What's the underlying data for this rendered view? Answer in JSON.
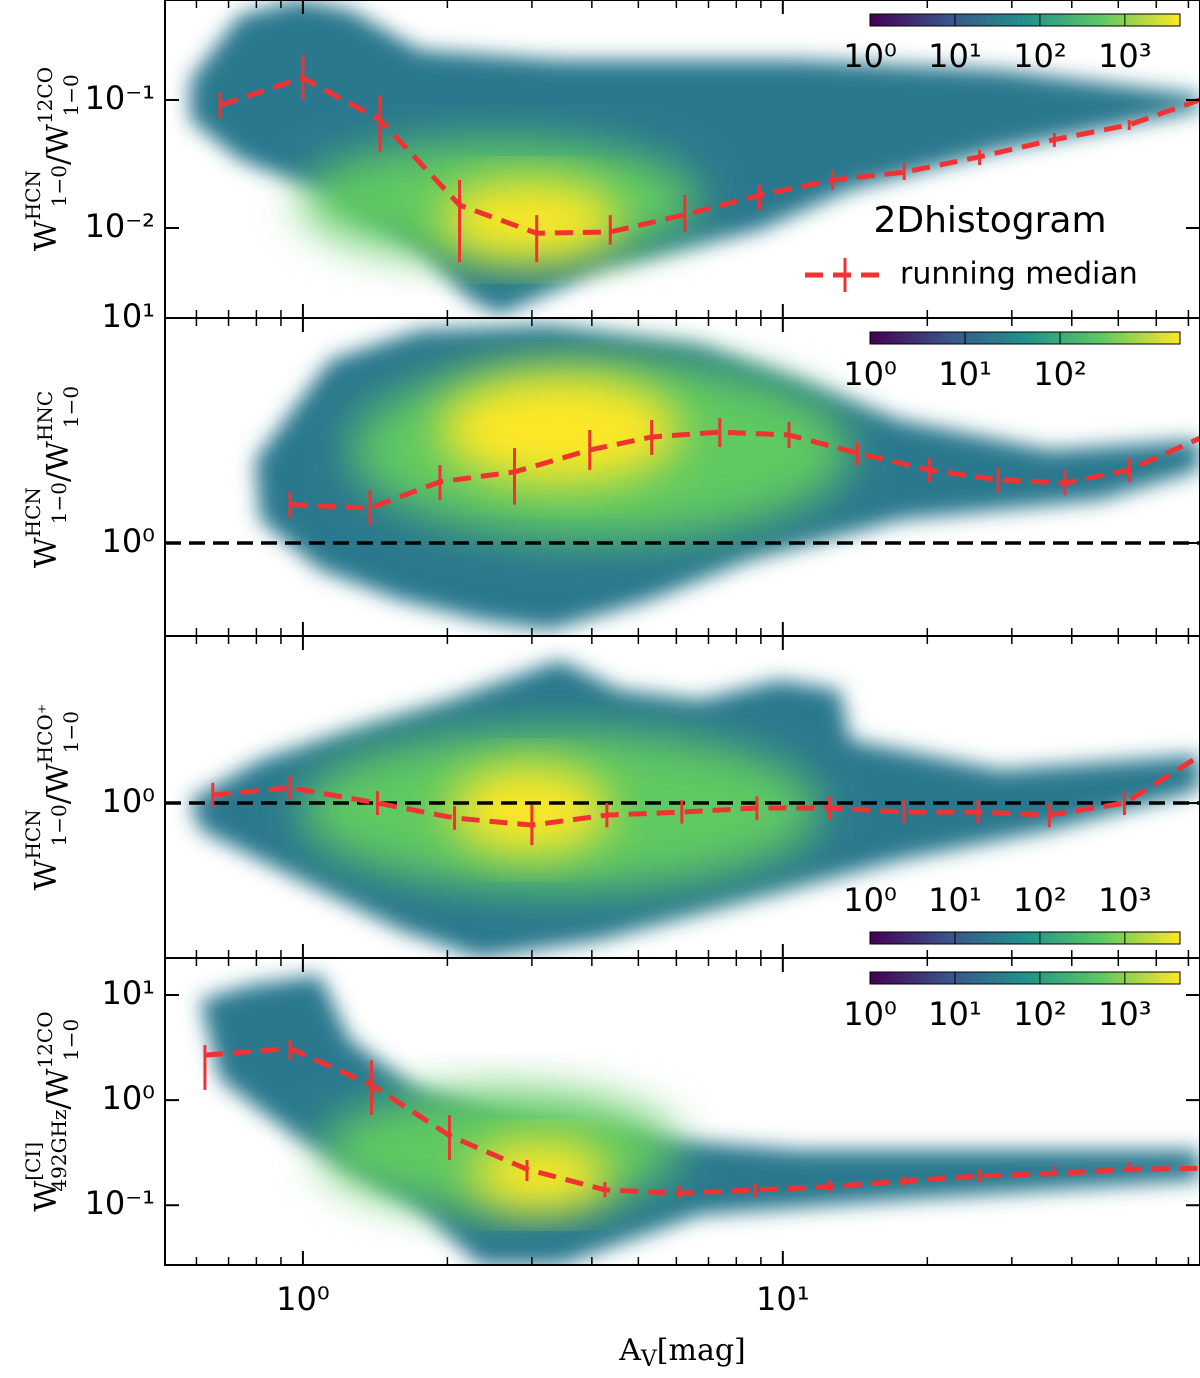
{
  "chart_data": [
    {
      "type": "hist2d",
      "ylabel": {
        "num": {
          "main": "W",
          "sup": "HCN",
          "sub": "1−0"
        },
        "sep": "/",
        "den": {
          "main": "W",
          "sup": "12CO",
          "sub": "1−0"
        }
      },
      "xlim": [
        0.516,
        74
      ],
      "xticks": [
        1,
        10
      ],
      "xminorticks": [
        0.6,
        0.7,
        0.8,
        0.9,
        2,
        3,
        4,
        5,
        6,
        7,
        8,
        9,
        20,
        30,
        40,
        50,
        60,
        70
      ],
      "log_x": true,
      "log_y": true,
      "ylim": [
        0.00198,
        0.604
      ],
      "yticks": [
        {
          "value": 0.01,
          "label": "10⁻²"
        },
        {
          "value": 0.1,
          "label": "10⁻¹"
        }
      ],
      "series": [
        {
          "name": "running median",
          "color": "#f03232",
          "x": [
            0.672,
            1.0,
            1.447,
            2.12,
            3.07,
            4.37,
            6.25,
            8.94,
            12.7,
            17.9,
            25.7,
            36.8,
            52.7,
            76
          ],
          "values": [
            0.091,
            0.149,
            0.07,
            0.0151,
            0.0091,
            0.0093,
            0.0127,
            0.018,
            0.0237,
            0.0273,
            0.036,
            0.049,
            0.064,
            0.104
          ],
          "lower": [
            0.072,
            0.1,
            0.039,
            0.0054,
            0.0054,
            0.0074,
            0.0093,
            0.0138,
            0.0198,
            0.0237,
            0.031,
            0.043,
            0.0583,
            null
          ],
          "upper": [
            0.115,
            0.225,
            0.109,
            0.0237,
            0.0126,
            0.0126,
            0.0181,
            0.0217,
            0.0284,
            0.0322,
            0.0407,
            0.0552,
            0.0698,
            null
          ]
        }
      ],
      "annotation": "2Dhistogram",
      "annotation_color": "#1a8a1a",
      "legend": "right",
      "colorbar": {
        "lim": [
          1,
          4460
        ],
        "corner": "top-right",
        "ticks": [
          {
            "value": 1,
            "label": "10⁰"
          },
          {
            "value": 10,
            "label": "10¹"
          },
          {
            "value": 100,
            "label": "10²"
          },
          {
            "value": 1000,
            "label": "10³"
          }
        ]
      }
    },
    {
      "type": "hist2d",
      "ylabel": {
        "num": {
          "main": "W",
          "sup": "HCN",
          "sub": "1−0"
        },
        "sep": "/",
        "den": {
          "main": "W",
          "sup": "HNC",
          "sub": "1−0"
        }
      },
      "xlim": [
        0.516,
        74
      ],
      "xticks": [
        1,
        10
      ],
      "xminorticks": [
        0.6,
        0.7,
        0.8,
        0.9,
        2,
        3,
        4,
        5,
        6,
        7,
        8,
        9,
        20,
        30,
        40,
        50,
        60,
        70
      ],
      "log_x": true,
      "log_y": true,
      "ylim": [
        0.386,
        10
      ],
      "yticks": [
        {
          "value": 1,
          "label": "10⁰"
        },
        {
          "value": 10,
          "label": "10¹"
        }
      ],
      "hline": 1,
      "series": [
        {
          "name": "running median",
          "color": "#f03232",
          "x": [
            0.94,
            1.38,
            1.93,
            2.76,
            3.96,
            5.33,
            7.39,
            10.3,
            14.3,
            20.2,
            28.1,
            38.7,
            52.7,
            76
          ],
          "values": [
            1.48,
            1.43,
            1.87,
            2.07,
            2.59,
            2.96,
            3.11,
            3.02,
            2.51,
            2.11,
            1.91,
            1.85,
            2.11,
            3.0
          ],
          "lower": [
            1.29,
            1.2,
            1.55,
            1.48,
            2.11,
            2.46,
            2.67,
            2.64,
            2.22,
            1.87,
            1.67,
            1.63,
            1.87,
            null
          ],
          "upper": [
            1.685,
            1.72,
            2.22,
            2.64,
            3.18,
            3.52,
            3.59,
            3.45,
            2.81,
            2.39,
            2.15,
            2.11,
            2.39,
            null
          ]
        }
      ],
      "colorbar": {
        "lim": [
          1,
          1830
        ],
        "corner": "top-right",
        "ticks": [
          {
            "value": 1,
            "label": "10⁰"
          },
          {
            "value": 10,
            "label": "10¹"
          },
          {
            "value": 100,
            "label": "10²"
          }
        ]
      }
    },
    {
      "type": "hist2d",
      "ylabel": {
        "num": {
          "main": "W",
          "sup": "HCN",
          "sub": "1−0"
        },
        "sep": "/",
        "den": {
          "main": "W",
          "sup": "HCO⁺",
          "sub": "1−0"
        }
      },
      "xlim": [
        0.516,
        74
      ],
      "xticks": [
        1,
        10
      ],
      "xminorticks": [
        0.6,
        0.7,
        0.8,
        0.9,
        2,
        3,
        4,
        5,
        6,
        7,
        8,
        9,
        20,
        30,
        40,
        50,
        60,
        70
      ],
      "log_x": true,
      "log_y": true,
      "ylim": [
        0.205,
        5.52
      ],
      "yticks": [
        {
          "value": 1,
          "label": "10⁰"
        }
      ],
      "hline": 1,
      "series": [
        {
          "name": "running median",
          "color": "#f03232",
          "x": [
            0.649,
            0.94,
            1.43,
            2.07,
            3.0,
            4.3,
            6.16,
            8.83,
            12.5,
            17.9,
            25.5,
            35.9,
            51.5,
            76
          ],
          "values": [
            1.085,
            1.17,
            1.0,
            0.858,
            0.798,
            0.884,
            0.912,
            0.95,
            0.95,
            0.912,
            0.912,
            0.884,
            1.0,
            1.68
          ],
          "lower": [
            0.96,
            1.04,
            0.885,
            0.76,
            0.65,
            0.78,
            0.81,
            0.84,
            0.84,
            0.81,
            0.81,
            0.78,
            0.885,
            null
          ],
          "upper": [
            1.23,
            1.32,
            1.13,
            0.97,
            0.98,
            1.0,
            1.03,
            1.07,
            1.07,
            1.03,
            1.03,
            1.0,
            1.13,
            null
          ]
        }
      ],
      "colorbar": {
        "lim": [
          1,
          4460
        ],
        "corner": "bottom-right",
        "ticks": [
          {
            "value": 1,
            "label": "10⁰"
          },
          {
            "value": 10,
            "label": "10¹"
          },
          {
            "value": 100,
            "label": "10²"
          },
          {
            "value": 1000,
            "label": "10³"
          }
        ]
      }
    },
    {
      "type": "hist2d",
      "ylabel": {
        "num": {
          "main": "W",
          "sup": "[CI]",
          "sub": "492GHz"
        },
        "sep": "/",
        "den": {
          "main": "W",
          "sup": "12CO",
          "sub": "1−0"
        }
      },
      "xlabel": {
        "main": "A",
        "sub": "V",
        "rest": "[mag]"
      },
      "xlim": [
        0.516,
        74
      ],
      "xticks": [
        {
          "value": 1,
          "label": "10⁰"
        },
        {
          "value": 10,
          "label": "10¹"
        }
      ],
      "xminorticks": [
        0.6,
        0.7,
        0.8,
        0.9,
        2,
        3,
        4,
        5,
        6,
        7,
        8,
        9,
        20,
        30,
        40,
        50,
        60,
        70
      ],
      "log_x": true,
      "log_y": true,
      "ylim": [
        0.027,
        22.5
      ],
      "yticks": [
        {
          "value": 0.1,
          "label": "10⁻¹"
        },
        {
          "value": 1,
          "label": "10⁰"
        },
        {
          "value": 10,
          "label": "10¹"
        }
      ],
      "series": [
        {
          "name": "running median",
          "color": "#f03232",
          "x": [
            0.625,
            0.94,
            1.39,
            2.02,
            2.93,
            4.26,
            6.1,
            8.76,
            12.5,
            17.9,
            25.7,
            36.8,
            52.7,
            76
          ],
          "values": [
            2.68,
            3.1,
            1.4,
            0.46,
            0.22,
            0.14,
            0.13,
            0.14,
            0.15,
            0.17,
            0.19,
            0.2,
            0.22,
            0.225
          ],
          "lower": [
            1.25,
            2.4,
            0.72,
            0.27,
            0.17,
            0.119,
            0.117,
            0.119,
            0.133,
            0.152,
            0.166,
            0.19,
            0.206,
            null
          ],
          "upper": [
            3.34,
            3.73,
            2.4,
            0.72,
            0.27,
            0.166,
            0.155,
            0.162,
            0.173,
            0.189,
            0.216,
            0.24,
            0.256,
            null
          ]
        }
      ],
      "colorbar": {
        "lim": [
          1,
          4460
        ],
        "corner": "top-right",
        "ticks": [
          {
            "value": 1,
            "label": "10⁰"
          },
          {
            "value": 10,
            "label": "10¹"
          },
          {
            "value": 100,
            "label": "10²"
          },
          {
            "value": 1000,
            "label": "10³"
          }
        ]
      }
    }
  ]
}
